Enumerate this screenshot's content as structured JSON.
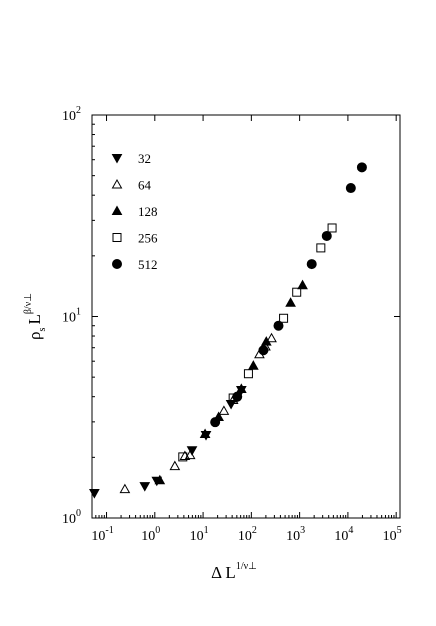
{
  "chart_data": {
    "type": "scatter",
    "xscale": "log",
    "yscale": "log",
    "xlabel": {
      "text": "Δ L",
      "sup": "1/ν⊥"
    },
    "ylabel": {
      "text": "ρ",
      "sub": "s",
      "text2": "L",
      "sup": "β/ν⊥"
    },
    "xlim": [
      0.05,
      120000
    ],
    "ylim": [
      1,
      100
    ],
    "xticks": [
      {
        "value": 0.1,
        "label": "10",
        "exponent": "-1"
      },
      {
        "value": 1,
        "label": "10",
        "exponent": "0"
      },
      {
        "value": 10,
        "label": "10",
        "exponent": "1"
      },
      {
        "value": 100,
        "label": "10",
        "exponent": "2"
      },
      {
        "value": 1000,
        "label": "10",
        "exponent": "3"
      },
      {
        "value": 10000,
        "label": "10",
        "exponent": "4"
      },
      {
        "value": 100000,
        "label": "10",
        "exponent": "5"
      }
    ],
    "yticks": [
      {
        "value": 1,
        "label": "10",
        "exponent": "0"
      },
      {
        "value": 10,
        "label": "10",
        "exponent": "1"
      },
      {
        "value": 100,
        "label": "10",
        "exponent": "2"
      }
    ],
    "legend": "upper left",
    "series": [
      {
        "name": "32",
        "color": "#000000",
        "marker": "triangle-down",
        "filled": true,
        "x": [
          0.056,
          0.62,
          1.1,
          5.9,
          11.5,
          38,
          62
        ],
        "values": [
          1.33,
          1.44,
          1.53,
          2.17,
          2.58,
          3.68,
          4.32
        ]
      },
      {
        "name": "64",
        "color": "#000000",
        "marker": "triangle-up",
        "filled": false,
        "x": [
          0.24,
          2.6,
          4.2,
          5.4,
          27,
          42,
          147,
          196,
          262
        ],
        "values": [
          1.39,
          1.81,
          2.03,
          2.05,
          3.4,
          3.85,
          6.5,
          7.1,
          7.8
        ]
      },
      {
        "name": "128",
        "color": "#000000",
        "marker": "triangle-up",
        "filled": true,
        "x": [
          1.27,
          11,
          21,
          62,
          110,
          204,
          650,
          1150
        ],
        "values": [
          1.54,
          2.61,
          3.17,
          4.37,
          5.7,
          7.5,
          11.7,
          14.3
        ]
      },
      {
        "name": "256",
        "color": "#000000",
        "marker": "square",
        "filled": false,
        "x": [
          3.8,
          42,
          87,
          465,
          870,
          2750,
          4700
        ],
        "values": [
          2.01,
          3.94,
          5.2,
          9.8,
          13.2,
          21.9,
          27.5
        ]
      },
      {
        "name": "512",
        "color": "#000000",
        "marker": "circle",
        "filled": true,
        "x": [
          17.8,
          51,
          178,
          365,
          1780,
          3650,
          11500,
          19500
        ],
        "values": [
          2.99,
          4.0,
          6.8,
          9.0,
          18.2,
          25.1,
          43.4,
          55
        ]
      }
    ]
  }
}
